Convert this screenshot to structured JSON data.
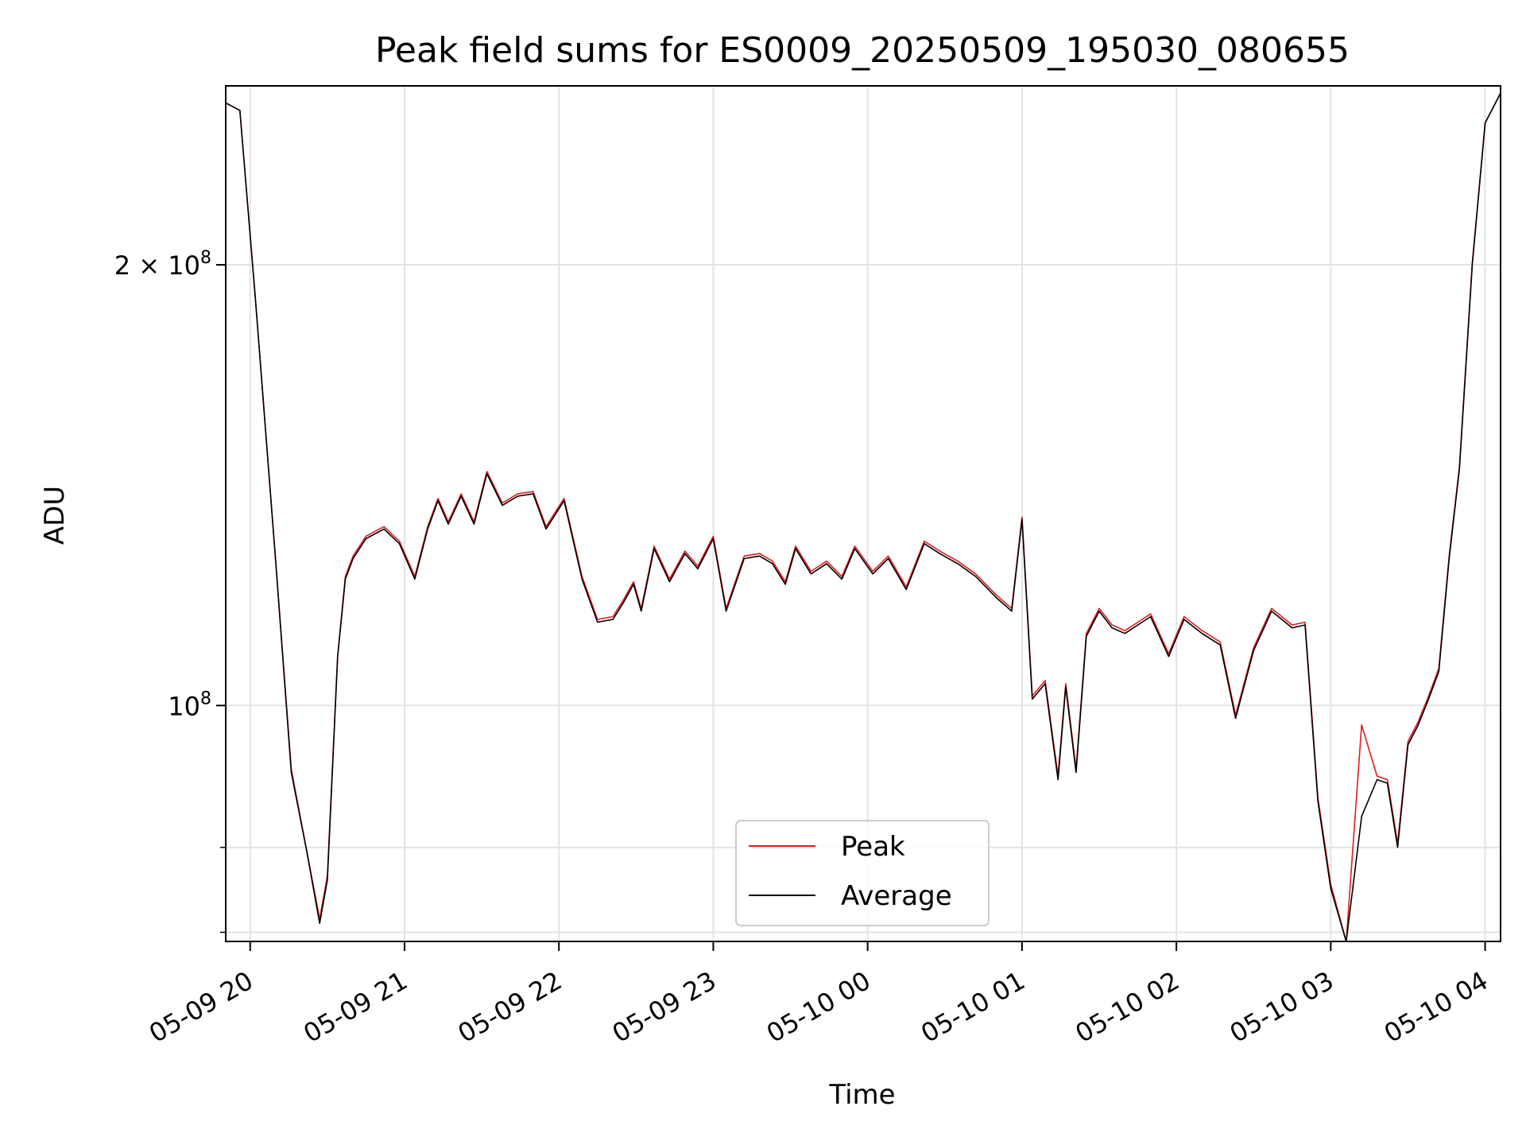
{
  "chart_data": {
    "type": "line",
    "title": "Peak field sums for ES0009_20250509_195030_080655",
    "xlabel": "Time",
    "ylabel": "ADU",
    "y_scale": "log",
    "xlim": [
      "2025-05-09 19:50:30",
      "2025-05-10 04:06:00"
    ],
    "ylim": [
      69000000,
      265000000
    ],
    "x_ticks": [
      "05-09 20",
      "05-09 21",
      "05-09 22",
      "05-09 23",
      "05-10 00",
      "05-10 01",
      "05-10 02",
      "05-10 03",
      "05-10 04"
    ],
    "y_ticks": [
      {
        "value": 100000000,
        "mantissa": "",
        "exponent": "8"
      },
      {
        "value": 200000000,
        "mantissa": "2",
        "exponent": "8"
      }
    ],
    "y_minor_ticks": [
      70000000,
      80000000
    ],
    "grid": true,
    "legend_position": "lower center",
    "colors": {
      "Peak": "#e41a1c",
      "Average": "#000000"
    },
    "time_x": [
      "2025-05-09 19:50:30",
      "2025-05-09 19:56:00",
      "2025-05-09 20:02:00",
      "2025-05-09 20:10:00",
      "2025-05-09 20:16:00",
      "2025-05-09 20:22:00",
      "2025-05-09 20:27:00",
      "2025-05-09 20:30:00",
      "2025-05-09 20:34:00",
      "2025-05-09 20:37:00",
      "2025-05-09 20:40:00",
      "2025-05-09 20:45:00",
      "2025-05-09 20:52:00",
      "2025-05-09 20:58:00",
      "2025-05-09 21:04:00",
      "2025-05-09 21:09:00",
      "2025-05-09 21:13:00",
      "2025-05-09 21:17:00",
      "2025-05-09 21:22:00",
      "2025-05-09 21:27:00",
      "2025-05-09 21:32:00",
      "2025-05-09 21:38:00",
      "2025-05-09 21:44:00",
      "2025-05-09 21:50:00",
      "2025-05-09 21:55:00",
      "2025-05-09 22:02:00",
      "2025-05-09 22:09:00",
      "2025-05-09 22:15:00",
      "2025-05-09 22:21:00",
      "2025-05-09 22:25:00",
      "2025-05-09 22:29:00",
      "2025-05-09 22:32:00",
      "2025-05-09 22:37:00",
      "2025-05-09 22:43:00",
      "2025-05-09 22:49:00",
      "2025-05-09 22:54:00",
      "2025-05-09 23:00:00",
      "2025-05-09 23:05:00",
      "2025-05-09 23:12:00",
      "2025-05-09 23:18:00",
      "2025-05-09 23:23:00",
      "2025-05-09 23:28:00",
      "2025-05-09 23:32:00",
      "2025-05-09 23:38:00",
      "2025-05-09 23:44:00",
      "2025-05-09 23:50:00",
      "2025-05-09 23:55:00",
      "2025-05-10 00:02:00",
      "2025-05-10 00:08:00",
      "2025-05-10 00:15:00",
      "2025-05-10 00:22:00",
      "2025-05-10 00:28:00",
      "2025-05-10 00:35:00",
      "2025-05-10 00:42:00",
      "2025-05-10 00:50:00",
      "2025-05-10 00:56:00",
      "2025-05-10 01:00:00",
      "2025-05-10 01:04:00",
      "2025-05-10 01:09:00",
      "2025-05-10 01:14:00",
      "2025-05-10 01:17:00",
      "2025-05-10 01:21:00",
      "2025-05-10 01:25:00",
      "2025-05-10 01:30:00",
      "2025-05-10 01:35:00",
      "2025-05-10 01:40:00",
      "2025-05-10 01:45:00",
      "2025-05-10 01:50:00",
      "2025-05-10 01:57:00",
      "2025-05-10 02:03:00",
      "2025-05-10 02:10:00",
      "2025-05-10 02:17:00",
      "2025-05-10 02:23:00",
      "2025-05-10 02:30:00",
      "2025-05-10 02:37:00",
      "2025-05-10 02:45:00",
      "2025-05-10 02:50:00",
      "2025-05-10 02:55:00",
      "2025-05-10 03:00:00",
      "2025-05-10 03:06:00",
      "2025-05-10 03:12:00",
      "2025-05-10 03:18:00",
      "2025-05-10 03:22:00",
      "2025-05-10 03:26:00",
      "2025-05-10 03:30:00",
      "2025-05-10 03:34:00",
      "2025-05-10 03:38:00",
      "2025-05-10 03:42:00",
      "2025-05-10 03:46:00",
      "2025-05-10 03:50:00",
      "2025-05-10 03:55:00",
      "2025-05-10 04:00:00",
      "2025-05-10 04:06:00"
    ],
    "series": [
      {
        "name": "Average",
        "values": [
          258000000,
          255000000,
          190000000,
          125000000,
          90000000,
          79500000,
          71000000,
          76000000,
          108000000,
          122000000,
          126000000,
          130000000,
          132000000,
          129000000,
          122000000,
          132000000,
          138000000,
          133000000,
          139000000,
          133000000,
          144000000,
          137000000,
          139000000,
          139500000,
          132000000,
          138000000,
          122000000,
          114000000,
          114500000,
          117500000,
          121000000,
          116000000,
          128000000,
          121500000,
          127000000,
          124000000,
          130000000,
          116000000,
          126000000,
          126500000,
          125000000,
          121000000,
          128000000,
          123000000,
          125000000,
          122000000,
          128000000,
          123000000,
          126000000,
          120000000,
          129000000,
          127000000,
          125000000,
          122500000,
          118500000,
          116000000,
          134000000,
          101000000,
          103500000,
          89000000,
          103000000,
          90000000,
          111500000,
          116000000,
          113000000,
          112000000,
          113500000,
          115000000,
          108000000,
          114500000,
          112000000,
          110000000,
          98000000,
          109000000,
          116000000,
          113000000,
          113500000,
          86000000,
          75000000,
          69000000,
          84000000,
          89000000,
          88500000,
          80000000,
          94000000,
          97000000,
          101000000,
          105500000,
          126000000,
          145000000,
          200000000,
          250000000,
          262000000
        ]
      },
      {
        "name": "Peak",
        "values": [
          258000000,
          255000000,
          190000000,
          125000000,
          90500000,
          79500000,
          71500000,
          76500000,
          108000000,
          122500000,
          126500000,
          130500000,
          132500000,
          129500000,
          122500000,
          132500000,
          138500000,
          133500000,
          139500000,
          133500000,
          144500000,
          137500000,
          139500000,
          140000000,
          132500000,
          138500000,
          122500000,
          114500000,
          115000000,
          118000000,
          121500000,
          116500000,
          128500000,
          122000000,
          127500000,
          124500000,
          130500000,
          116500000,
          126500000,
          127000000,
          125500000,
          121500000,
          128500000,
          123500000,
          125500000,
          122500000,
          128500000,
          123500000,
          126500000,
          120500000,
          129500000,
          127500000,
          125500000,
          123000000,
          119000000,
          116500000,
          134500000,
          101500000,
          104000000,
          89500000,
          103500000,
          90500000,
          112000000,
          116500000,
          113500000,
          112500000,
          114000000,
          115500000,
          108500000,
          115000000,
          112500000,
          110500000,
          98500000,
          109500000,
          116500000,
          113500000,
          114000000,
          86500000,
          75500000,
          69000000,
          97000000,
          89500000,
          89000000,
          80500000,
          94500000,
          97500000,
          101500000,
          106000000,
          126500000,
          145500000,
          200500000,
          250000000,
          262000000
        ]
      }
    ]
  }
}
